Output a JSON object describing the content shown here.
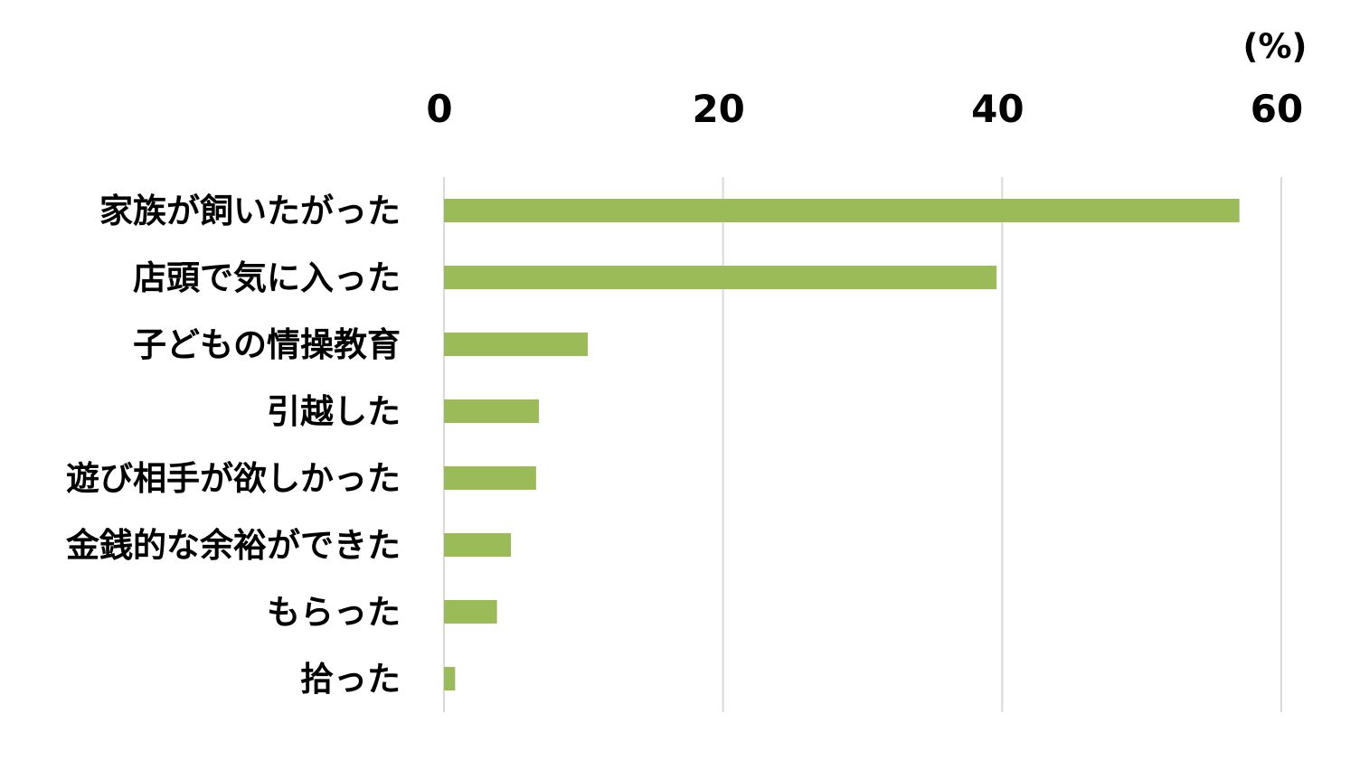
{
  "chart_data": {
    "type": "bar",
    "orientation": "horizontal",
    "unit": "(%)",
    "categories": [
      "家族が飼いたがった",
      "店頭で気に入った",
      "子どもの情操教育",
      "引越した",
      "遊び相手が欲しかった",
      "金銭的な余裕ができた",
      "もらった",
      "拾った"
    ],
    "values": [
      57.0,
      39.6,
      10.3,
      6.8,
      6.6,
      4.8,
      3.8,
      0.8
    ],
    "xlim": [
      0,
      60
    ],
    "xticks": [
      "0",
      "20",
      "40",
      "60"
    ],
    "tick_values": [
      0,
      20,
      40,
      60
    ],
    "axis_position": "top",
    "grid": true,
    "legend": "none",
    "colors": {
      "bar": "#9bbb59",
      "grid": "#d9d9d9"
    }
  }
}
